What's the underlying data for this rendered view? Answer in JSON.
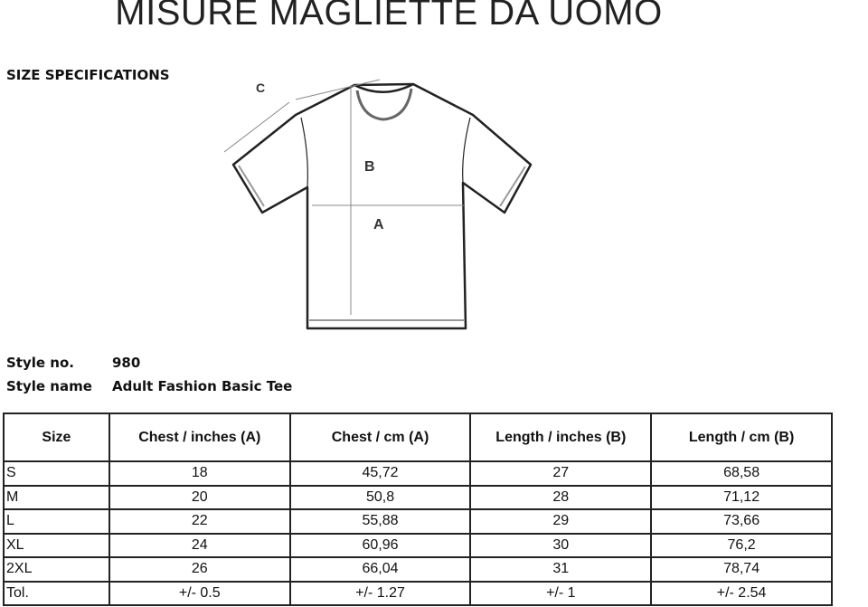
{
  "title": "MISURE MAGLIETTE DA UOMO",
  "subtitle": "SIZE SPECIFICATIONS",
  "diagram": {
    "labels": {
      "a": "A",
      "b": "B",
      "c": "C"
    }
  },
  "style": {
    "number_label": "Style no.",
    "number": "980",
    "name_label": "Style name",
    "name": "Adult Fashion Basic Tee"
  },
  "table": {
    "headers": [
      "Size",
      "Chest / inches (A)",
      "Chest / cm (A)",
      "Length / inches (B)",
      "Length / cm (B)"
    ],
    "rows": [
      [
        "S",
        "18",
        "45,72",
        "27",
        "68,58"
      ],
      [
        "M",
        "20",
        "50,8",
        "28",
        "71,12"
      ],
      [
        "L",
        "22",
        "55,88",
        "29",
        "73,66"
      ],
      [
        "XL",
        "24",
        "60,96",
        "30",
        "76,2"
      ],
      [
        "2XL",
        "26",
        "66,04",
        "31",
        "78,74"
      ],
      [
        "Tol.",
        "+/- 0.5",
        "+/- 1.27",
        "+/- 1",
        "+/- 2.54"
      ]
    ]
  }
}
